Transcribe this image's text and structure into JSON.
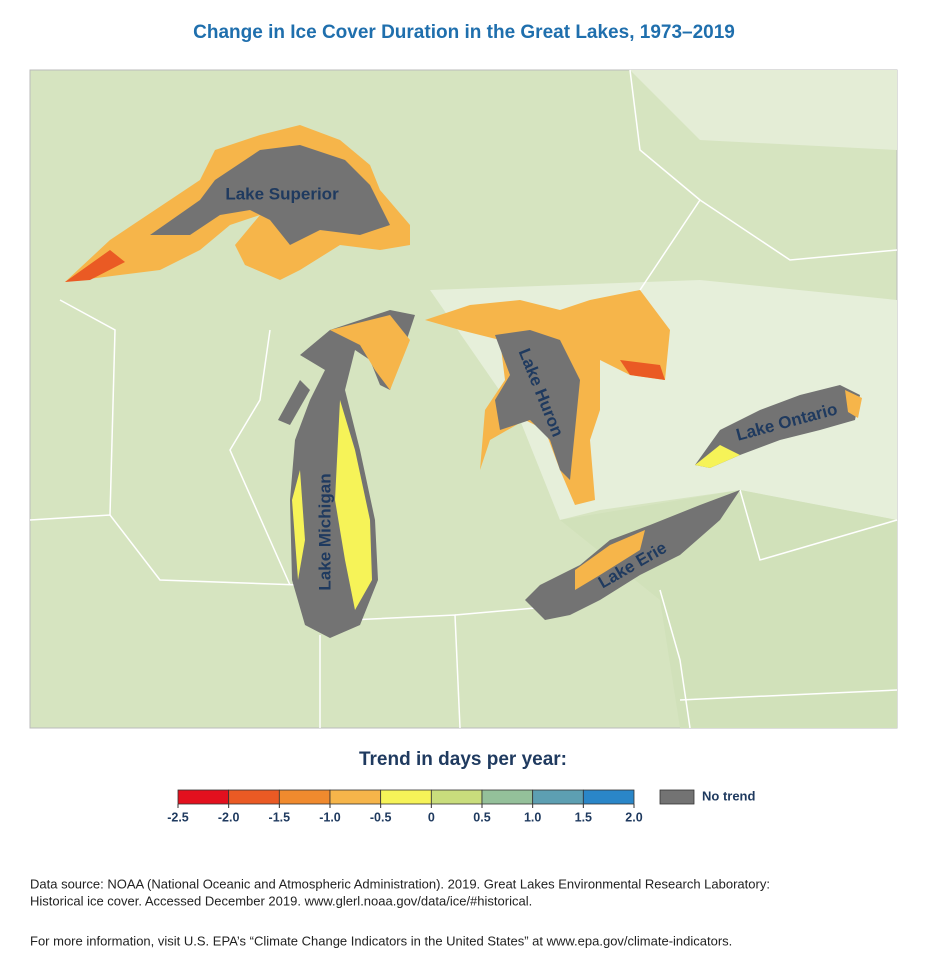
{
  "title": "Change in Ice Cover Duration in the Great Lakes, 1973–2019",
  "map": {
    "lakes": [
      "Lake Superior",
      "Lake Michigan",
      "Lake Huron",
      "Lake Erie",
      "Lake Ontario"
    ]
  },
  "legend": {
    "title": "Trend in days per year:",
    "ticks": [
      -2.5,
      {
        "value": -2.0,
        "label": "-2.0"
      },
      -1.5,
      {
        "value": -1.0,
        "label": "-1.0"
      },
      -0.5,
      0,
      0.5,
      {
        "value": 1.0,
        "label": "1.0"
      },
      1.5,
      {
        "value": 2.0,
        "label": "2.0"
      }
    ],
    "colors": [
      "#e3101e",
      "#ea5a24",
      "#f08a2e",
      "#f6b54a",
      "#f6f358",
      "#c9dd7c",
      "#94c09a",
      "#5d9fb2",
      "#2a86c8"
    ],
    "no_trend": {
      "label": "No trend",
      "color": "#737373"
    }
  },
  "notes": [
    "Data source: NOAA (National Oceanic and Atmospheric Administration). 2019. Great Lakes Environmental Research Laboratory:",
    "Historical ice cover. Accessed December 2019. www.glerl.noaa.gov/data/ice/#historical.",
    "For more information, visit U.S. EPA’s “Climate Change Indicators in the United States” at www.epa.gov/climate-indicators."
  ]
}
